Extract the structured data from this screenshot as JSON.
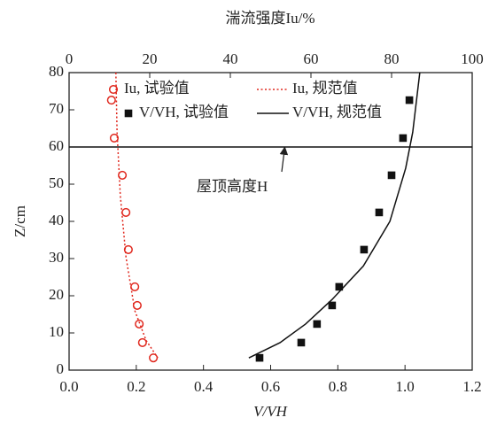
{
  "chart_data": {
    "type": "line",
    "x_label": "V/VH",
    "x2_label": "湍流强度Iu/%",
    "y_label": "Z/cm",
    "xlim": [
      0,
      1.2
    ],
    "xticks": [
      {
        "value": 0,
        "label": "0.0"
      },
      0.2,
      0.4,
      0.6,
      0.8,
      {
        "value": 1,
        "label": "1.0"
      },
      1.2
    ],
    "x2lim": [
      0,
      100
    ],
    "x2ticks": [
      0,
      20,
      40,
      60,
      80,
      100
    ],
    "ylim": [
      0,
      80
    ],
    "yticks": [
      0,
      10,
      20,
      30,
      40,
      50,
      60,
      70,
      80
    ],
    "legend": "upper left",
    "reference_line": {
      "value": 60,
      "label": "屋顶高度H"
    },
    "series": [
      {
        "name": "Iu, 试验值",
        "color": "#e0281e",
        "axis": "x2",
        "mode": "markers",
        "marker": "circle",
        "x": [
          10.5,
          11.2,
          13.2,
          14.1,
          14.7,
          16.3,
          16.9,
          17.4,
          18.2,
          20.9
        ],
        "values": [
          72.6,
          62.4,
          52.4,
          42.4,
          32.4,
          22.4,
          17.4,
          12.4,
          7.4,
          3.3
        ]
      },
      {
        "name": "Iu, 规范值",
        "color": "#e0281e",
        "axis": "x2",
        "mode": "line",
        "line_style": "dotted",
        "x": [
          11.6,
          11.9,
          12.7,
          14.1,
          16.3,
          19.1,
          22
        ],
        "values": [
          80,
          64,
          47,
          30.5,
          16,
          8,
          3.3
        ]
      },
      {
        "name": "V/VH, 试验值",
        "color": "#111111",
        "axis": "x",
        "mode": "markers",
        "marker": "square",
        "x": [
          0.567,
          0.691,
          0.738,
          0.783,
          0.804,
          0.878,
          0.923,
          0.96,
          0.994,
          1.013
        ],
        "values": [
          3.3,
          7.4,
          12.4,
          17.4,
          22.4,
          32.4,
          42.4,
          52.4,
          62.4,
          72.6
        ]
      },
      {
        "name": "V/VH, 规范值",
        "color": "#111111",
        "axis": "x",
        "mode": "line",
        "line_style": "solid",
        "x": [
          0.535,
          0.628,
          0.704,
          0.783,
          0.876,
          0.955,
          1.002,
          1.023,
          1.044
        ],
        "values": [
          3.3,
          7.4,
          12.4,
          19,
          28,
          40,
          54.3,
          64,
          80
        ]
      }
    ]
  }
}
